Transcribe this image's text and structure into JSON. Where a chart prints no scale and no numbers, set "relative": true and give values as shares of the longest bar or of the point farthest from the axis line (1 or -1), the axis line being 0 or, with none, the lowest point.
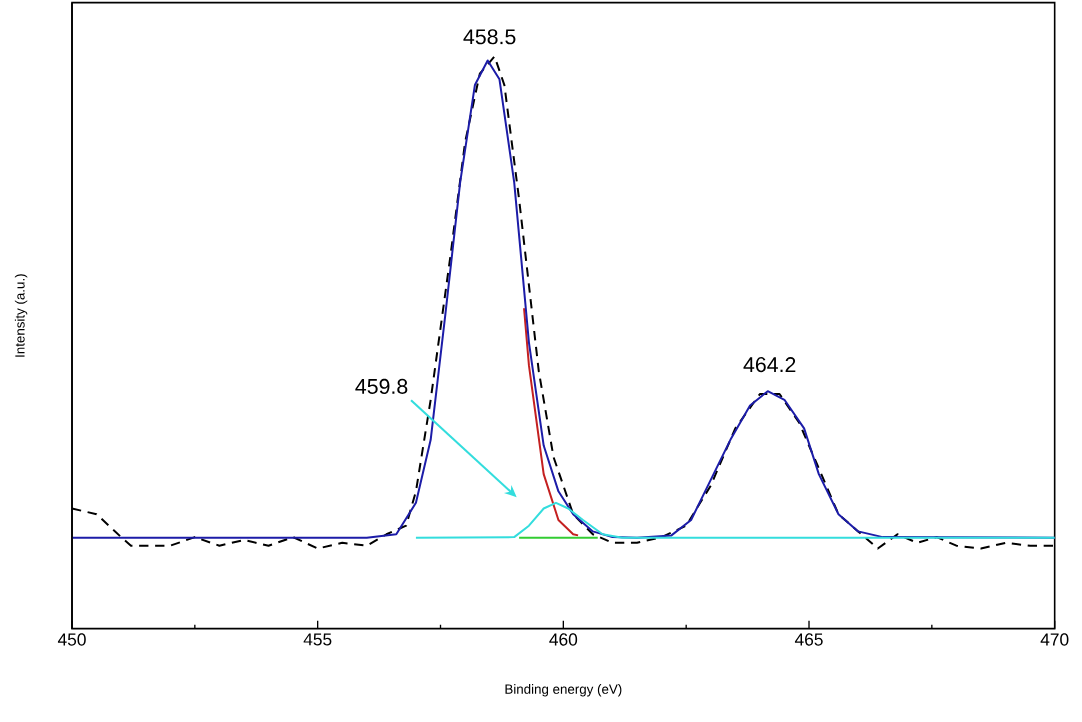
{
  "chart_data": {
    "type": "line",
    "relative": true,
    "xlabel": "Binding energy (eV)",
    "ylabel": "Intensity (a.u.)",
    "xlim": [
      450,
      470
    ],
    "xticks": [
      450,
      455,
      460,
      465,
      470
    ],
    "grid": false,
    "marker": "none",
    "series": [
      {
        "color": "#000000",
        "line_style": "dashed",
        "x": [
          450,
          450.5,
          451,
          451.2,
          452,
          452.5,
          453,
          453.5,
          454,
          454.5,
          455,
          455.5,
          456,
          456.4,
          456.8,
          457.0,
          457.3,
          457.7,
          458.0,
          458.3,
          458.6,
          458.8,
          459.1,
          459.5,
          459.8,
          460.2,
          460.6,
          461,
          461.5,
          462,
          462.5,
          463,
          463.5,
          464,
          464.4,
          464.8,
          465.2,
          465.6,
          466,
          466.4,
          466.8,
          467.2,
          467.6,
          468,
          468.5,
          469,
          469.5,
          470
        ],
        "values": [
          0.21,
          0.2,
          0.16,
          0.145,
          0.145,
          0.16,
          0.145,
          0.155,
          0.145,
          0.16,
          0.14,
          0.15,
          0.145,
          0.165,
          0.18,
          0.24,
          0.4,
          0.65,
          0.85,
          0.97,
          1.0,
          0.95,
          0.75,
          0.45,
          0.3,
          0.2,
          0.165,
          0.15,
          0.15,
          0.16,
          0.18,
          0.25,
          0.35,
          0.41,
          0.41,
          0.36,
          0.28,
          0.2,
          0.17,
          0.14,
          0.165,
          0.15,
          0.16,
          0.145,
          0.14,
          0.15,
          0.145,
          0.145
        ]
      },
      {
        "color": "#c42020",
        "line_style": "solid",
        "x": [
          459.2,
          459.3,
          459.6,
          459.9,
          460.2,
          460.3
        ],
        "values": [
          0.56,
          0.46,
          0.27,
          0.19,
          0.165,
          0.163
        ]
      },
      {
        "color": "#33cc33",
        "line_style": "solid",
        "x": [
          459.1,
          460.7
        ],
        "values": [
          0.159,
          0.159
        ]
      },
      {
        "color": "#1c1ca8",
        "line_style": "solid",
        "x": [
          450,
          456,
          456.6,
          457.0,
          457.3,
          457.6,
          457.9,
          458.2,
          458.46,
          458.7,
          459.0,
          459.3,
          459.6,
          459.9,
          460.2,
          460.6,
          461.0,
          461.5,
          462.2,
          462.6,
          463.0,
          463.4,
          463.8,
          464.16,
          464.5,
          464.9,
          465.2,
          465.6,
          466.0,
          466.5,
          470
        ],
        "values": [
          0.159,
          0.159,
          0.165,
          0.22,
          0.33,
          0.55,
          0.78,
          0.95,
          0.993,
          0.96,
          0.78,
          0.5,
          0.32,
          0.24,
          0.2,
          0.17,
          0.16,
          0.159,
          0.163,
          0.19,
          0.26,
          0.33,
          0.39,
          0.415,
          0.4,
          0.35,
          0.27,
          0.2,
          0.17,
          0.16,
          0.159
        ]
      },
      {
        "color": "#33dddd",
        "line_style": "solid",
        "x": [
          457,
          459.0,
          459.3,
          459.6,
          459.85,
          460.1,
          460.4,
          460.8,
          461.2,
          470
        ],
        "values": [
          0.159,
          0.16,
          0.18,
          0.21,
          0.22,
          0.21,
          0.19,
          0.165,
          0.159,
          0.159
        ]
      }
    ],
    "annotations": [
      {
        "text": "458.5",
        "x": 458.5,
        "y": 0.993
      },
      "459.8",
      {
        "text": "464.2",
        "x": 464.2,
        "y": 0.415
      }
    ]
  }
}
